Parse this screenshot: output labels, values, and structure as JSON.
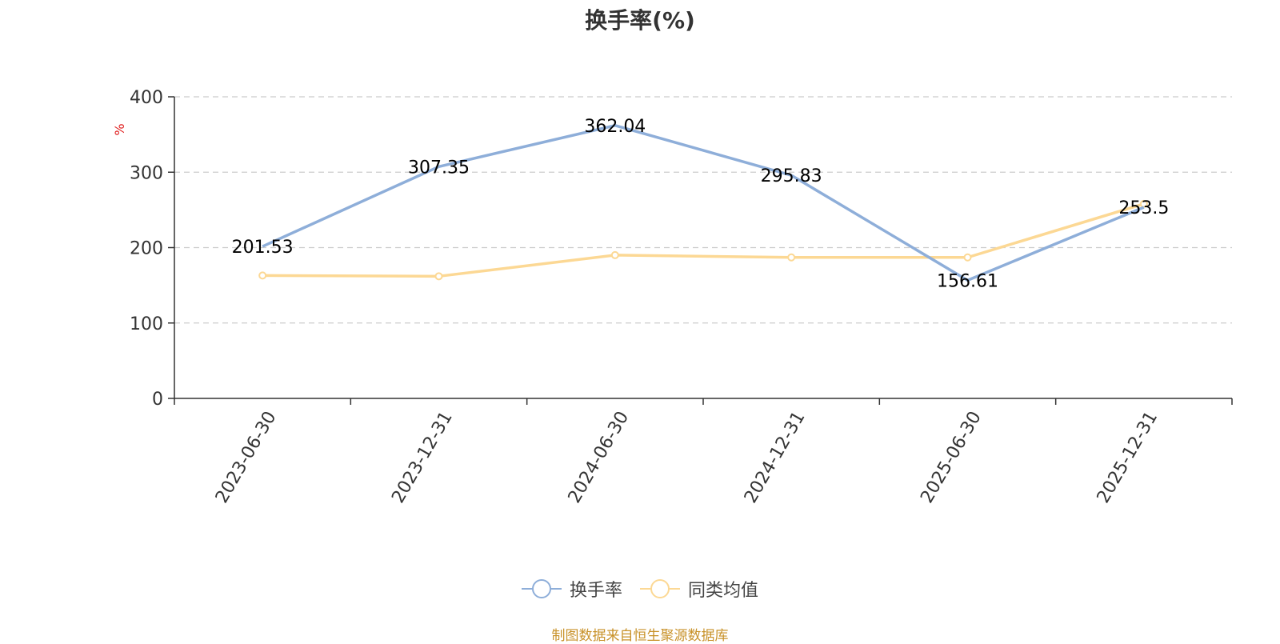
{
  "chart_data": {
    "type": "line",
    "title": "换手率(%)",
    "ylabel": "%",
    "categories": [
      "2023-06-30",
      "2023-12-31",
      "2024-06-30",
      "2024-12-31",
      "2025-06-30",
      "2025-12-31"
    ],
    "ylim": [
      0,
      400
    ],
    "yticks": [
      0,
      100,
      200,
      300,
      400
    ],
    "grid": true,
    "legend_position": "bottom",
    "series": [
      {
        "name": "换手率",
        "values": [
          201.53,
          307.35,
          362.04,
          295.83,
          156.61,
          253.5
        ],
        "labels": [
          "201.53",
          "307.35",
          "362.04",
          "295.83",
          "156.61",
          "253.5"
        ],
        "color": "#8eaed9"
      },
      {
        "name": "同类均值",
        "values": [
          163,
          162,
          190,
          187,
          187,
          258
        ],
        "color": "#fcd894"
      }
    ]
  },
  "source": {
    "text": "制图数据来自恒生聚源数据库",
    "color": "#c8922a"
  },
  "colors": {
    "ylabel": "#e02020",
    "axis": "#333333",
    "grid": "#cccccc",
    "text": "#333333"
  }
}
